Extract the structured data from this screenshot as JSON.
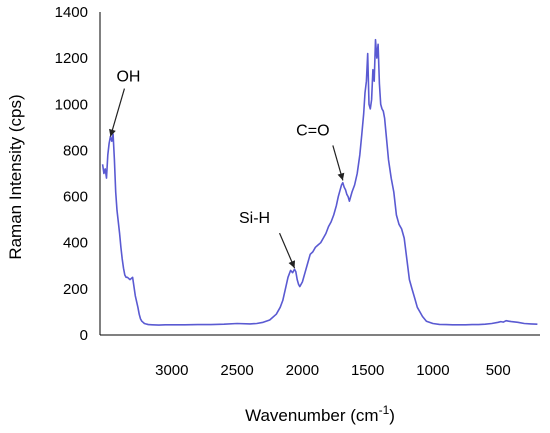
{
  "chart_data": {
    "type": "line",
    "title": "",
    "xlabel": "Wavenumber (cm",
    "xlabel_superscript": "-1",
    "xlabel_suffix": ")",
    "ylabel": "Raman Intensity (cps)",
    "xlim": [
      3550,
      180
    ],
    "ylim": [
      0,
      1400
    ],
    "x_reversed": true,
    "grid": false,
    "legend": "none",
    "x_ticks": [
      3000,
      2500,
      2000,
      1500,
      1000,
      500
    ],
    "y_ticks": [
      0,
      200,
      400,
      600,
      800,
      1000,
      1200,
      1400
    ],
    "line_color": "#5a5ad2",
    "series": [
      {
        "x": [
          3530,
          3520,
          3510,
          3500,
          3490,
          3480,
          3470,
          3460,
          3450,
          3440,
          3430,
          3420,
          3410,
          3400,
          3390,
          3380,
          3370,
          3360,
          3350,
          3340,
          3320,
          3300,
          3280,
          3260,
          3250,
          3240,
          3230,
          3220,
          3210,
          3200,
          3190,
          3180,
          3150,
          3100,
          3050,
          3000,
          2900,
          2800,
          2700,
          2600,
          2500,
          2400,
          2350,
          2300,
          2250,
          2200,
          2170,
          2150,
          2130,
          2110,
          2090,
          2075,
          2060,
          2050,
          2040,
          2030,
          2020,
          2000,
          1980,
          1960,
          1940,
          1920,
          1900,
          1880,
          1860,
          1840,
          1820,
          1800,
          1780,
          1760,
          1740,
          1725,
          1710,
          1700,
          1690,
          1680,
          1670,
          1660,
          1650,
          1640,
          1620,
          1600,
          1580,
          1560,
          1545,
          1530,
          1520,
          1510,
          1500,
          1490,
          1480,
          1470,
          1460,
          1450,
          1440,
          1430,
          1420,
          1410,
          1400,
          1390,
          1380,
          1370,
          1360,
          1340,
          1320,
          1300,
          1280,
          1260,
          1240,
          1220,
          1200,
          1180,
          1160,
          1140,
          1120,
          1100,
          1080,
          1050,
          1000,
          950,
          900,
          850,
          800,
          750,
          700,
          650,
          600,
          550,
          500,
          480,
          460,
          440,
          420,
          400,
          350,
          300,
          250,
          200
        ],
        "y": [
          740,
          700,
          720,
          680,
          780,
          830,
          860,
          840,
          870,
          760,
          620,
          540,
          490,
          440,
          380,
          330,
          290,
          260,
          250,
          250,
          240,
          250,
          170,
          120,
          90,
          70,
          60,
          55,
          50,
          48,
          47,
          45,
          44,
          43,
          44,
          44,
          44,
          45,
          45,
          47,
          50,
          48,
          50,
          55,
          65,
          90,
          120,
          150,
          200,
          250,
          280,
          270,
          285,
          275,
          240,
          220,
          210,
          230,
          270,
          310,
          350,
          360,
          380,
          390,
          400,
          420,
          440,
          470,
          490,
          520,
          560,
          600,
          630,
          650,
          660,
          640,
          630,
          610,
          600,
          580,
          620,
          650,
          700,
          780,
          870,
          960,
          1050,
          1100,
          1220,
          1000,
          980,
          1020,
          1150,
          1100,
          1280,
          1200,
          1260,
          1090,
          1000,
          980,
          970,
          940,
          880,
          760,
          680,
          620,
          520,
          480,
          460,
          420,
          330,
          240,
          200,
          160,
          120,
          100,
          80,
          60,
          50,
          46,
          45,
          44,
          44,
          44,
          45,
          45,
          47,
          50,
          55,
          58,
          56,
          62,
          60,
          58,
          55,
          50,
          48,
          47
        ]
      }
    ],
    "annotations": [
      {
        "text": "OH",
        "x": 3470,
        "y": 860
      },
      {
        "text": "Si-H",
        "x": 2060,
        "y": 290
      },
      {
        "text": "C=O",
        "x": 1690,
        "y": 670
      }
    ]
  }
}
